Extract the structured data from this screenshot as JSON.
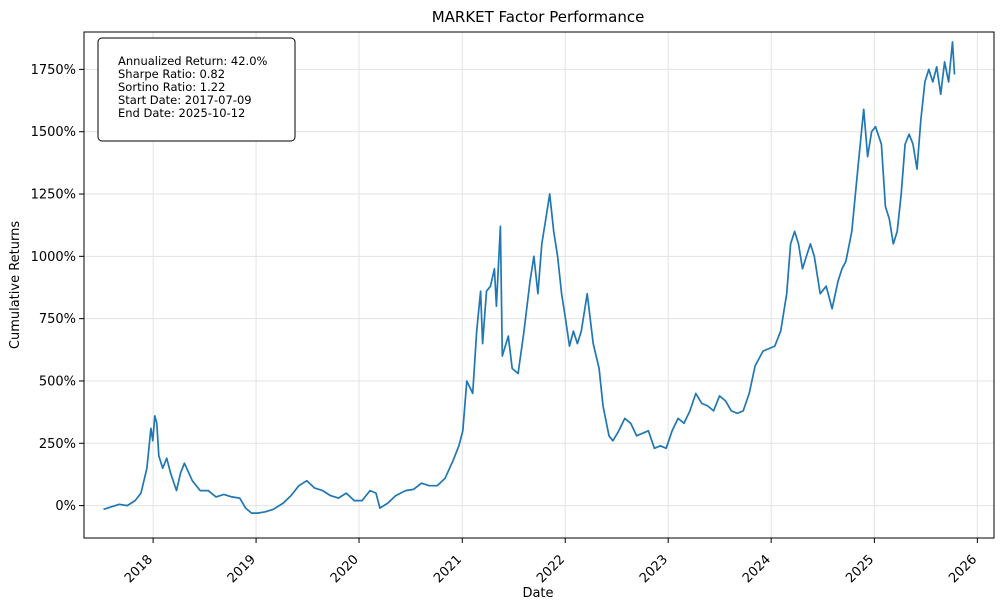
{
  "chart_data": {
    "type": "line",
    "title": "MARKET Factor Performance",
    "xlabel": "Date",
    "ylabel": "Cumulative Returns",
    "x_ticks": [
      "2018",
      "2019",
      "2020",
      "2021",
      "2022",
      "2023",
      "2024",
      "2025",
      "2026"
    ],
    "y_ticks": [
      "0%",
      "250%",
      "500%",
      "750%",
      "1000%",
      "1250%",
      "1500%",
      "1750%"
    ],
    "y_tick_values": [
      0,
      250,
      500,
      750,
      1000,
      1250,
      1500,
      1750
    ],
    "xlim": [
      "2017-05-01",
      "2026-03-01"
    ],
    "ylim": [
      -130,
      1900
    ],
    "grid": true,
    "line_color": "#1f77b4",
    "stats": [
      "Annualized Return: 42.0%",
      "Sharpe Ratio: 0.82",
      "Sortino Ratio: 1.22",
      "Start Date: 2017-07-09",
      "End Date: 2025-10-12"
    ],
    "series": [
      {
        "points": [
          [
            "2017-07-09",
            -15
          ],
          [
            "2017-08-06",
            -5
          ],
          [
            "2017-09-03",
            5
          ],
          [
            "2017-10-01",
            0
          ],
          [
            "2017-10-29",
            20
          ],
          [
            "2017-11-19",
            50
          ],
          [
            "2017-12-10",
            150
          ],
          [
            "2017-12-24",
            310
          ],
          [
            "2017-12-31",
            260
          ],
          [
            "2018-01-07",
            360
          ],
          [
            "2018-01-14",
            330
          ],
          [
            "2018-01-21",
            200
          ],
          [
            "2018-02-04",
            150
          ],
          [
            "2018-02-18",
            190
          ],
          [
            "2018-03-04",
            130
          ],
          [
            "2018-03-25",
            60
          ],
          [
            "2018-04-08",
            130
          ],
          [
            "2018-04-22",
            170
          ],
          [
            "2018-05-20",
            100
          ],
          [
            "2018-06-17",
            60
          ],
          [
            "2018-07-15",
            60
          ],
          [
            "2018-08-12",
            35
          ],
          [
            "2018-09-09",
            45
          ],
          [
            "2018-10-07",
            35
          ],
          [
            "2018-11-04",
            30
          ],
          [
            "2018-11-25",
            -10
          ],
          [
            "2018-12-16",
            -30
          ],
          [
            "2019-01-06",
            -30
          ],
          [
            "2019-02-03",
            -25
          ],
          [
            "2019-03-03",
            -15
          ],
          [
            "2019-04-07",
            10
          ],
          [
            "2019-05-05",
            40
          ],
          [
            "2019-06-02",
            80
          ],
          [
            "2019-06-30",
            100
          ],
          [
            "2019-07-28",
            70
          ],
          [
            "2019-08-25",
            60
          ],
          [
            "2019-09-22",
            40
          ],
          [
            "2019-10-20",
            30
          ],
          [
            "2019-11-17",
            50
          ],
          [
            "2019-12-15",
            20
          ],
          [
            "2020-01-12",
            20
          ],
          [
            "2020-02-09",
            60
          ],
          [
            "2020-03-01",
            50
          ],
          [
            "2020-03-15",
            -10
          ],
          [
            "2020-04-12",
            10
          ],
          [
            "2020-05-10",
            40
          ],
          [
            "2020-06-14",
            60
          ],
          [
            "2020-07-12",
            65
          ],
          [
            "2020-08-09",
            90
          ],
          [
            "2020-09-06",
            80
          ],
          [
            "2020-10-04",
            80
          ],
          [
            "2020-11-01",
            110
          ],
          [
            "2020-11-29",
            180
          ],
          [
            "2020-12-20",
            240
          ],
          [
            "2021-01-03",
            300
          ],
          [
            "2021-01-17",
            500
          ],
          [
            "2021-02-07",
            450
          ],
          [
            "2021-02-21",
            700
          ],
          [
            "2021-03-07",
            860
          ],
          [
            "2021-03-14",
            650
          ],
          [
            "2021-03-28",
            860
          ],
          [
            "2021-04-11",
            880
          ],
          [
            "2021-04-25",
            950
          ],
          [
            "2021-05-02",
            800
          ],
          [
            "2021-05-16",
            1120
          ],
          [
            "2021-05-23",
            600
          ],
          [
            "2021-06-13",
            680
          ],
          [
            "2021-06-27",
            550
          ],
          [
            "2021-07-18",
            530
          ],
          [
            "2021-08-08",
            700
          ],
          [
            "2021-08-29",
            900
          ],
          [
            "2021-09-12",
            1000
          ],
          [
            "2021-09-26",
            850
          ],
          [
            "2021-10-10",
            1050
          ],
          [
            "2021-10-24",
            1150
          ],
          [
            "2021-11-07",
            1250
          ],
          [
            "2021-11-21",
            1100
          ],
          [
            "2021-12-05",
            1000
          ],
          [
            "2021-12-19",
            850
          ],
          [
            "2022-01-02",
            750
          ],
          [
            "2022-01-16",
            640
          ],
          [
            "2022-01-30",
            700
          ],
          [
            "2022-02-13",
            650
          ],
          [
            "2022-02-27",
            700
          ],
          [
            "2022-03-20",
            850
          ],
          [
            "2022-04-10",
            650
          ],
          [
            "2022-05-01",
            550
          ],
          [
            "2022-05-15",
            400
          ],
          [
            "2022-06-05",
            280
          ],
          [
            "2022-06-19",
            260
          ],
          [
            "2022-07-10",
            300
          ],
          [
            "2022-07-31",
            350
          ],
          [
            "2022-08-21",
            330
          ],
          [
            "2022-09-11",
            280
          ],
          [
            "2022-10-02",
            290
          ],
          [
            "2022-10-23",
            300
          ],
          [
            "2022-11-13",
            230
          ],
          [
            "2022-12-04",
            240
          ],
          [
            "2022-12-25",
            230
          ],
          [
            "2023-01-15",
            300
          ],
          [
            "2023-02-05",
            350
          ],
          [
            "2023-02-26",
            330
          ],
          [
            "2023-03-19",
            380
          ],
          [
            "2023-04-09",
            450
          ],
          [
            "2023-04-30",
            410
          ],
          [
            "2023-05-21",
            400
          ],
          [
            "2023-06-11",
            380
          ],
          [
            "2023-07-02",
            440
          ],
          [
            "2023-07-23",
            420
          ],
          [
            "2023-08-13",
            380
          ],
          [
            "2023-09-03",
            370
          ],
          [
            "2023-09-24",
            380
          ],
          [
            "2023-10-15",
            450
          ],
          [
            "2023-11-05",
            560
          ],
          [
            "2023-12-03",
            620
          ],
          [
            "2023-12-24",
            630
          ],
          [
            "2024-01-14",
            640
          ],
          [
            "2024-02-04",
            700
          ],
          [
            "2024-02-25",
            850
          ],
          [
            "2024-03-10",
            1050
          ],
          [
            "2024-03-24",
            1100
          ],
          [
            "2024-04-07",
            1050
          ],
          [
            "2024-04-21",
            950
          ],
          [
            "2024-05-05",
            1000
          ],
          [
            "2024-05-19",
            1050
          ],
          [
            "2024-06-02",
            1000
          ],
          [
            "2024-06-23",
            850
          ],
          [
            "2024-07-14",
            880
          ],
          [
            "2024-08-04",
            790
          ],
          [
            "2024-08-25",
            900
          ],
          [
            "2024-09-08",
            950
          ],
          [
            "2024-09-22",
            980
          ],
          [
            "2024-10-13",
            1100
          ],
          [
            "2024-11-03",
            1350
          ],
          [
            "2024-11-24",
            1590
          ],
          [
            "2024-12-08",
            1400
          ],
          [
            "2024-12-22",
            1500
          ],
          [
            "2025-01-05",
            1520
          ],
          [
            "2025-01-26",
            1450
          ],
          [
            "2025-02-09",
            1200
          ],
          [
            "2025-02-23",
            1150
          ],
          [
            "2025-03-09",
            1050
          ],
          [
            "2025-03-23",
            1100
          ],
          [
            "2025-04-06",
            1250
          ],
          [
            "2025-04-20",
            1450
          ],
          [
            "2025-05-04",
            1490
          ],
          [
            "2025-05-18",
            1450
          ],
          [
            "2025-06-01",
            1350
          ],
          [
            "2025-06-15",
            1550
          ],
          [
            "2025-06-29",
            1700
          ],
          [
            "2025-07-13",
            1750
          ],
          [
            "2025-07-27",
            1700
          ],
          [
            "2025-08-10",
            1760
          ],
          [
            "2025-08-24",
            1650
          ],
          [
            "2025-09-07",
            1780
          ],
          [
            "2025-09-21",
            1700
          ],
          [
            "2025-10-05",
            1860
          ],
          [
            "2025-10-12",
            1730
          ]
        ]
      }
    ]
  }
}
